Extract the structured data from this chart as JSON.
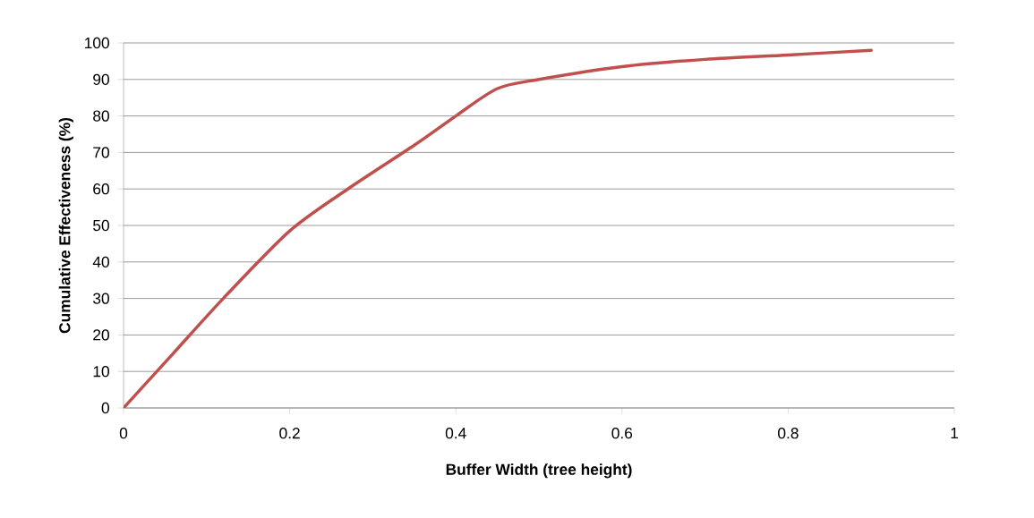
{
  "chart_data": {
    "type": "line",
    "xlabel": "Buffer Width (tree height)",
    "ylabel": "Cumulative Effectiveness (%)",
    "x": [
      0,
      0.06,
      0.12,
      0.2,
      0.27,
      0.35,
      0.4,
      0.45,
      0.5,
      0.6,
      0.7,
      0.8,
      0.9
    ],
    "series": [
      {
        "color": "#c0504d",
        "values": [
          0,
          15,
          30,
          48.5,
          60,
          72,
          80,
          87.5,
          90,
          93.5,
          95.5,
          96.7,
          98
        ]
      }
    ],
    "xlim": [
      0,
      1
    ],
    "xticks": [
      0,
      0.2,
      0.4,
      0.6,
      0.8,
      1
    ],
    "ylim": [
      0,
      100
    ],
    "yticks": [
      0,
      10,
      20,
      30,
      40,
      50,
      60,
      70,
      80,
      90,
      100
    ],
    "grid": "y",
    "marker": "none",
    "line_style": "solid"
  }
}
